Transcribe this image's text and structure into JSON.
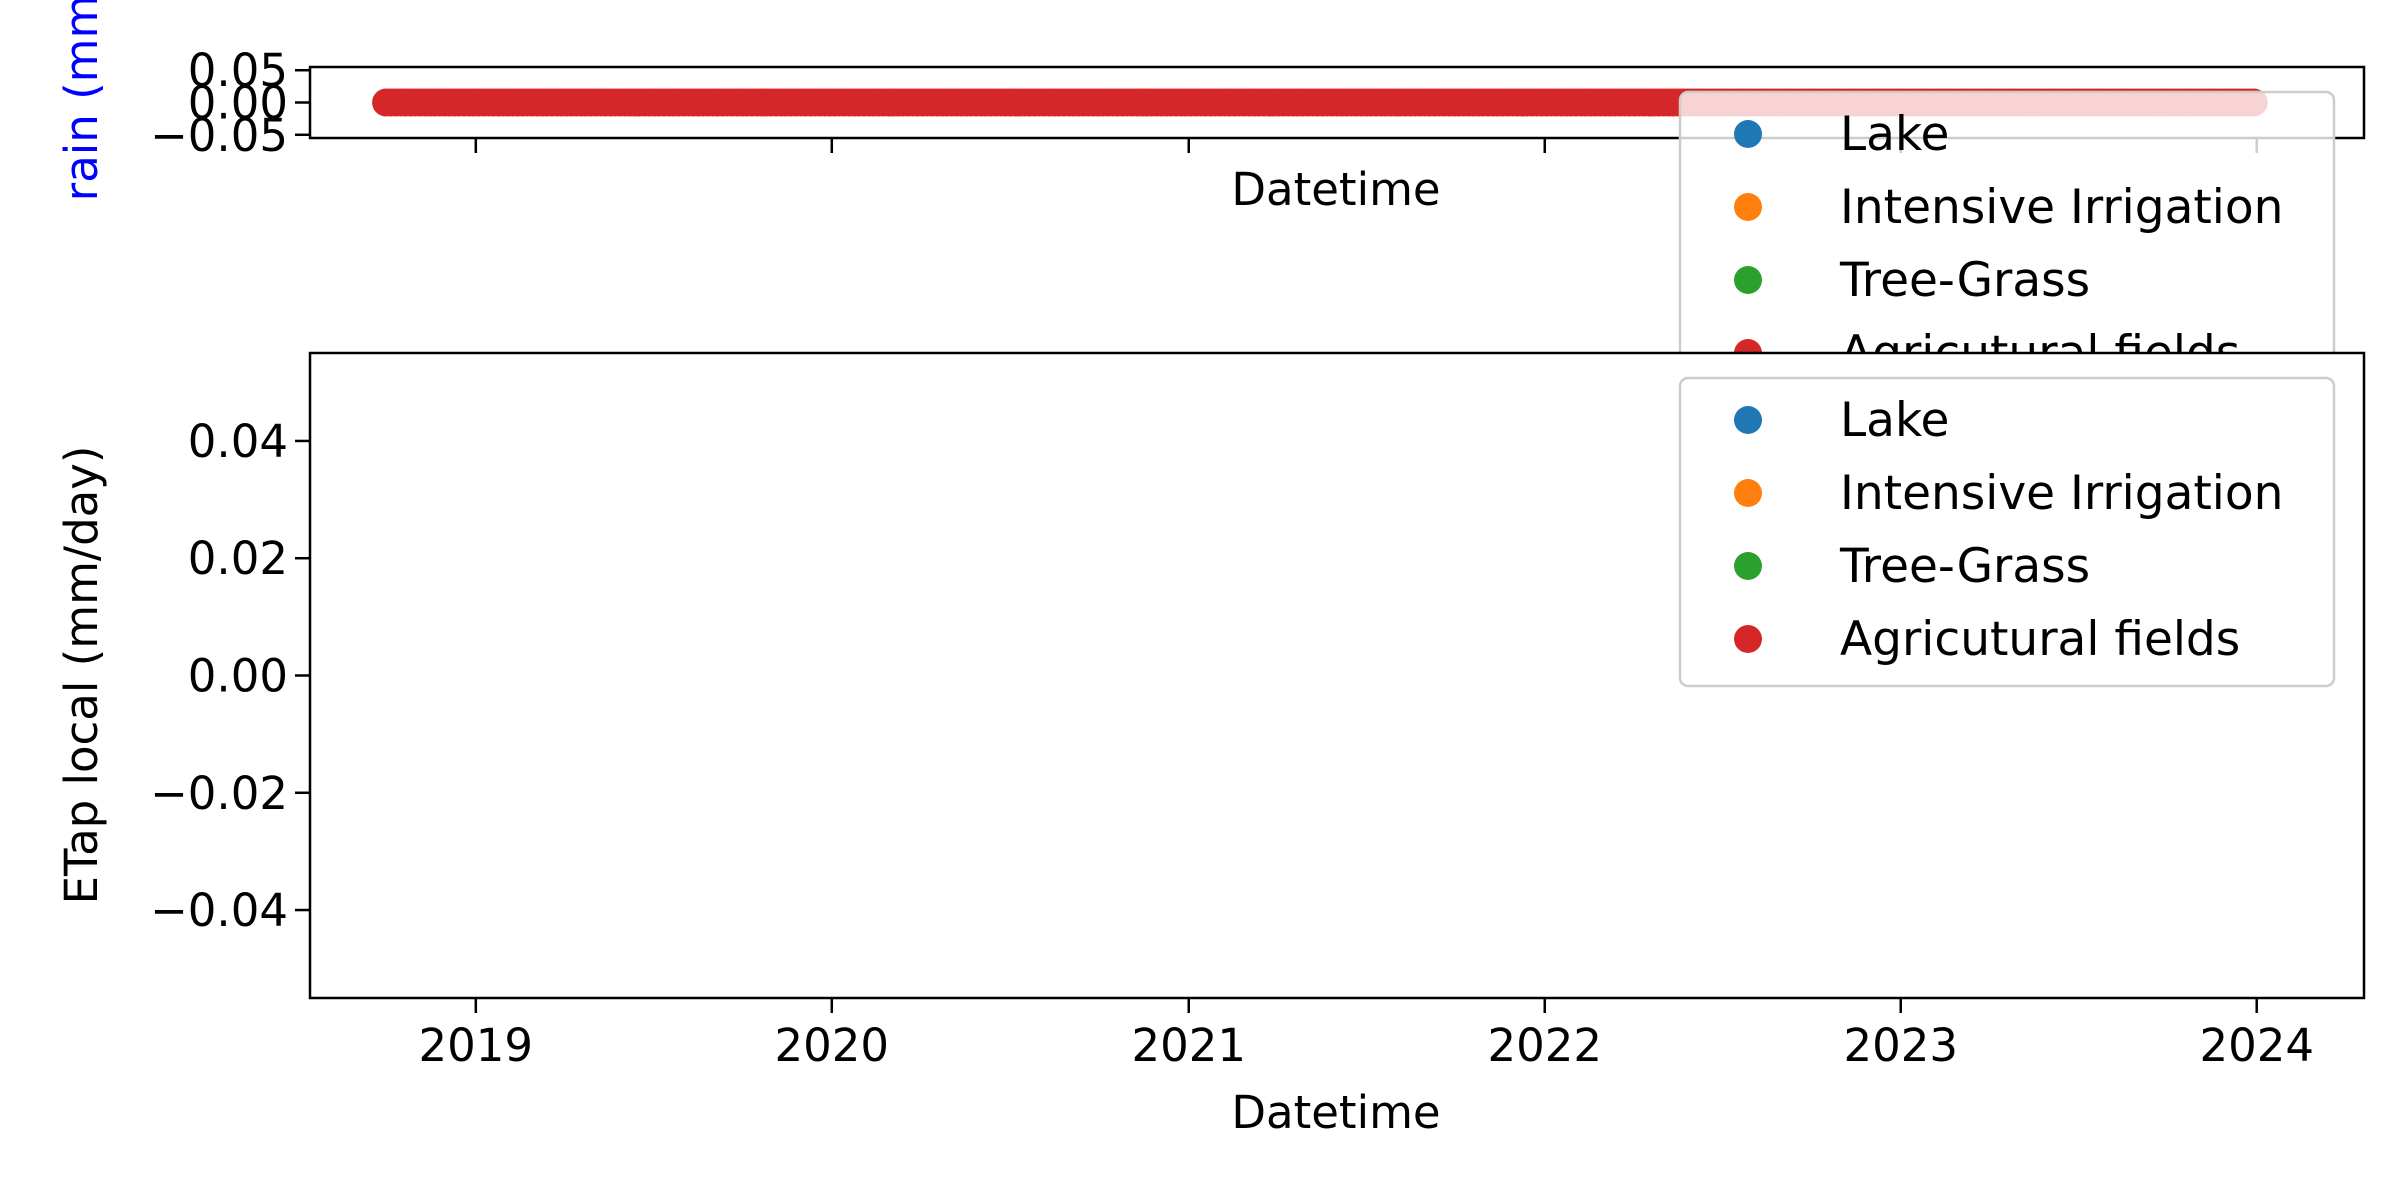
{
  "chart_data": [
    {
      "type": "scatter",
      "xlabel": "Datetime",
      "ylabel": "rain (mm",
      "ylabel_color": "#0000ff",
      "x_range": [
        "2018-07-15",
        "2024-04-20"
      ],
      "ylim": [
        -0.055,
        0.055
      ],
      "yticks": [
        -0.05,
        0.0,
        0.05
      ],
      "ytick_labels": [
        "−0.05",
        "0.00",
        "0.05"
      ],
      "xtick_dates": [
        "2019-01-01",
        "2020-01-01",
        "2021-01-01",
        "2022-01-01",
        "2023-01-01",
        "2024-01-01"
      ],
      "x_ticklabels_shown": false,
      "legend": "upper right",
      "series": [
        {
          "name": "Lake",
          "color": "#1f77b4",
          "points": []
        },
        {
          "name": "Intensive Irrigation",
          "color": "#ff7f0e",
          "points": []
        },
        {
          "name": "Tree-Grass",
          "color": "#2ca02c",
          "points": []
        },
        {
          "name": "Agricutural fields",
          "color": "#d62728",
          "date_start": "2018-10-01",
          "date_end": "2024-01-01",
          "value": 0
        }
      ]
    },
    {
      "type": "scatter",
      "xlabel": "Datetime",
      "ylabel": "ETap local (mm/day)",
      "x_range": [
        "2018-07-15",
        "2024-04-20"
      ],
      "ylim": [
        -0.055,
        0.055
      ],
      "yticks": [
        -0.04,
        -0.02,
        0.0,
        0.02,
        0.04
      ],
      "ytick_labels": [
        "−0.04",
        "−0.02",
        "0.00",
        "0.02",
        "0.04"
      ],
      "xtick_dates": [
        "2019-01-01",
        "2020-01-01",
        "2021-01-01",
        "2022-01-01",
        "2023-01-01",
        "2024-01-01"
      ],
      "xtick_labels": [
        "2019",
        "2020",
        "2021",
        "2022",
        "2023",
        "2024"
      ],
      "legend": "upper right",
      "series": [
        {
          "name": "Lake",
          "color": "#1f77b4",
          "points": []
        },
        {
          "name": "Intensive Irrigation",
          "color": "#ff7f0e",
          "points": []
        },
        {
          "name": "Tree-Grass",
          "color": "#2ca02c",
          "points": []
        },
        {
          "name": "Agricutural fields",
          "color": "#d62728",
          "points": []
        }
      ]
    }
  ]
}
